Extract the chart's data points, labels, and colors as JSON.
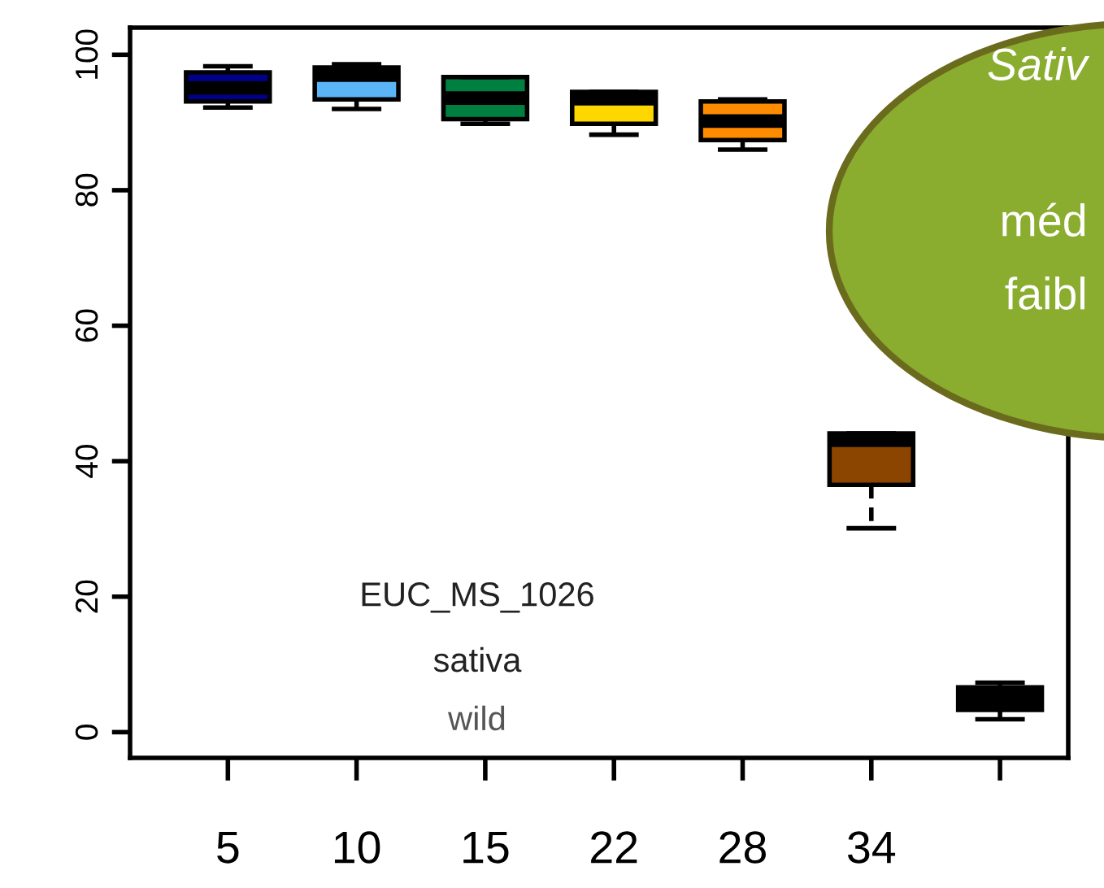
{
  "chart_data": {
    "type": "box",
    "categories": [
      "5",
      "10",
      "15",
      "22",
      "28",
      "34",
      null
    ],
    "boxes": [
      {
        "low": 92.2,
        "q1": 93.1,
        "median": 95.1,
        "q3": 97.4,
        "high": 98.3
      },
      {
        "low": 92,
        "q1": 93.4,
        "median": 97,
        "q3": 98.1,
        "high": 98.6
      },
      {
        "low": 89.8,
        "q1": 90.5,
        "median": 93.6,
        "q3": 96.7,
        "high": 96.7
      },
      {
        "low": 88.2,
        "q1": 89.8,
        "median": 93.5,
        "q3": 94.5,
        "high": 94.5
      },
      {
        "low": 86,
        "q1": 87.4,
        "median": 90.2,
        "q3": 93.1,
        "high": 93.4
      },
      {
        "low": 30.1,
        "q1": 36.5,
        "median": 43.1,
        "q3": 44.1,
        "high": 44.1
      },
      {
        "low": 1.9,
        "q1": 3.3,
        "median": 5,
        "q3": 6.6,
        "high": 7.3
      }
    ],
    "colors": [
      "#00008b",
      "#5ab4f5",
      "#008040",
      "#ffd700",
      "#ff8c00",
      "#8b4500",
      "#000000"
    ],
    "ylim": [
      -3.8,
      104
    ],
    "yticks": [
      0,
      20,
      40,
      60,
      80,
      100
    ],
    "annotations": [
      "EUC_MS_1026",
      "sativa",
      "wild",
      "Sativ",
      "méd",
      "faibl"
    ]
  }
}
